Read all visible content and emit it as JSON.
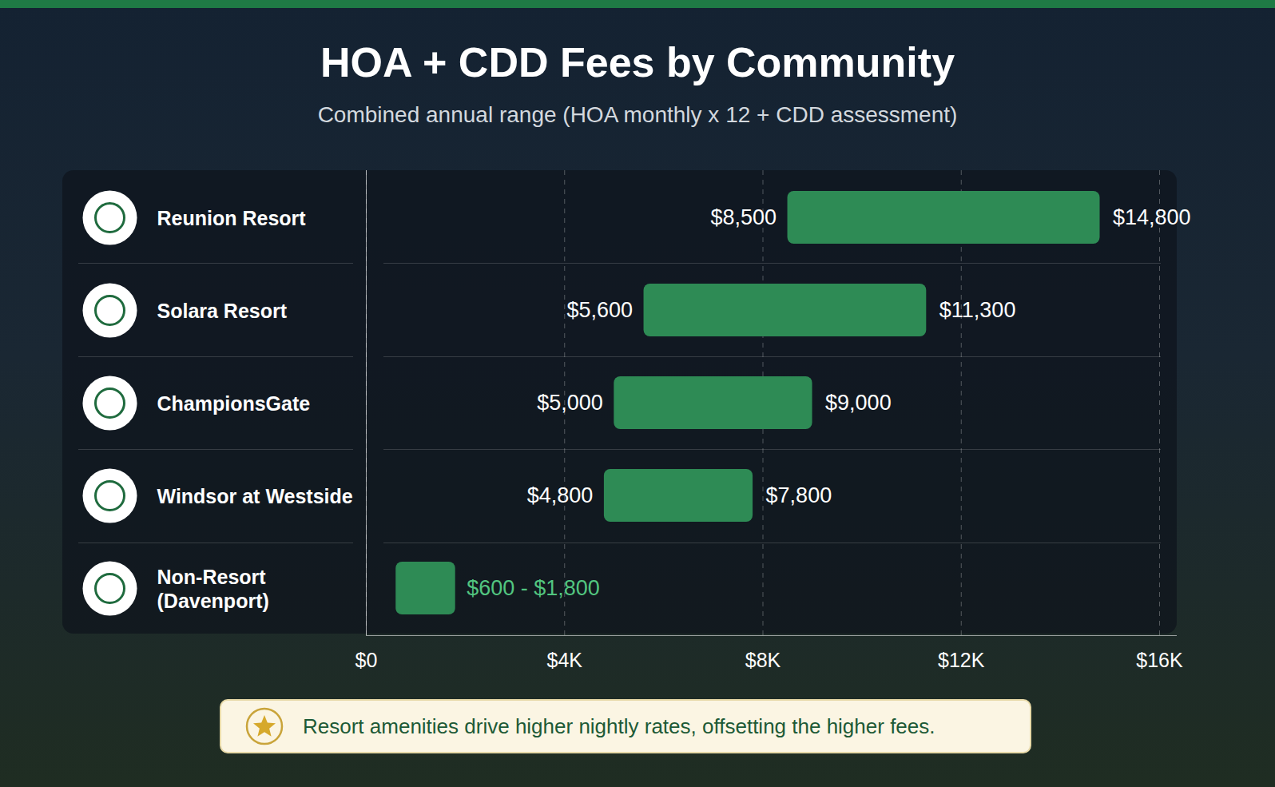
{
  "chart_data": {
    "type": "bar",
    "orientation": "horizontal",
    "title": "HOA + CDD Fees by Community",
    "subtitle": "Combined annual range (HOA monthly x 12 + CDD assessment)",
    "annotation": "Resort amenities drive higher nightly rates, offsetting the higher fees.",
    "categories": [
      "Reunion Resort",
      "Solara Resort",
      "ChampionsGate",
      "Windsor at Westside",
      "Non-Resort (Davenport)"
    ],
    "values": [
      [
        8500,
        14800
      ],
      [
        5600,
        11300
      ],
      [
        5000,
        9000
      ],
      [
        4800,
        7800
      ],
      [
        600,
        1800
      ]
    ],
    "value_labels": [
      [
        "$8,500",
        "$14,800"
      ],
      [
        "$5,600",
        "$11,300"
      ],
      [
        "$5,000",
        "$9,000"
      ],
      [
        "$4,800",
        "$7,800"
      ],
      [
        "$600 - $1,800"
      ]
    ],
    "data_labels": true,
    "color": "#2e8b55",
    "xlim": [
      0,
      16000
    ],
    "xticks": [
      {
        "value": 0,
        "label": "$0"
      },
      {
        "value": 4000,
        "label": "$4K"
      },
      {
        "value": 8000,
        "label": "$8K"
      },
      {
        "value": 12000,
        "label": "$12K"
      },
      {
        "value": 16000,
        "label": "$16K"
      }
    ],
    "grid": true
  }
}
